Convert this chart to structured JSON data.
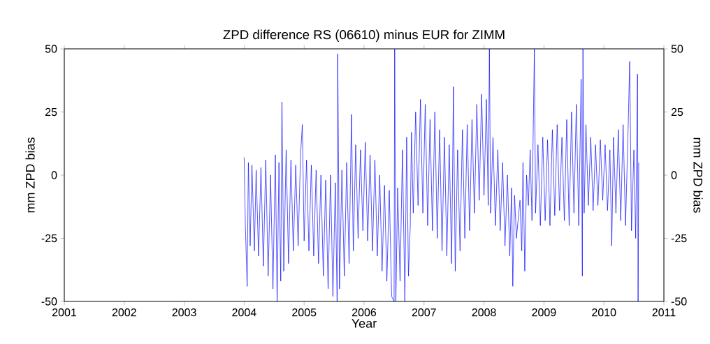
{
  "chart_data": {
    "type": "line",
    "title": "ZPD difference RS (06610) minus EUR for ZIMM",
    "xlabel": "Year",
    "ylabel": "mm ZPD bias",
    "y2label": "mm ZPD bias",
    "xlim": [
      2001,
      2011
    ],
    "xticks": [
      2001,
      2002,
      2003,
      2004,
      2005,
      2006,
      2007,
      2008,
      2009,
      2010,
      2011
    ],
    "ylim": [
      -50,
      50
    ],
    "yticks": [
      -50,
      -25,
      0,
      25,
      50
    ],
    "y2lim": [
      -50,
      50
    ],
    "y2ticks": [
      -50,
      -25,
      0,
      25,
      50
    ],
    "grid": false,
    "marker": "none",
    "line_style": "solid",
    "series": [
      {
        "color": "#0000ff",
        "x": [
          2004.0,
          2004.02,
          2004.05,
          2004.07,
          2004.1,
          2004.13,
          2004.17,
          2004.2,
          2004.24,
          2004.28,
          2004.32,
          2004.36,
          2004.4,
          2004.44,
          2004.48,
          2004.52,
          2004.55,
          2004.58,
          2004.61,
          2004.63,
          2004.66,
          2004.7,
          2004.74,
          2004.78,
          2004.82,
          2004.86,
          2004.9,
          2004.94,
          2004.97,
          2005.0,
          2005.04,
          2005.08,
          2005.12,
          2005.16,
          2005.2,
          2005.24,
          2005.28,
          2005.32,
          2005.36,
          2005.4,
          2005.44,
          2005.48,
          2005.52,
          2005.55,
          2005.56,
          2005.59,
          2005.63,
          2005.67,
          2005.71,
          2005.75,
          2005.79,
          2005.82,
          2005.86,
          2005.9,
          2005.94,
          2005.98,
          2006.02,
          2006.06,
          2006.1,
          2006.14,
          2006.18,
          2006.22,
          2006.26,
          2006.3,
          2006.34,
          2006.38,
          2006.42,
          2006.46,
          2006.5,
          2006.51,
          2006.53,
          2006.56,
          2006.6,
          2006.64,
          2006.68,
          2006.71,
          2006.74,
          2006.77,
          2006.79,
          2006.82,
          2006.86,
          2006.9,
          2006.94,
          2006.98,
          2007.02,
          2007.06,
          2007.1,
          2007.14,
          2007.18,
          2007.22,
          2007.26,
          2007.3,
          2007.34,
          2007.38,
          2007.42,
          2007.46,
          2007.49,
          2007.52,
          2007.56,
          2007.6,
          2007.64,
          2007.68,
          2007.72,
          2007.76,
          2007.8,
          2007.84,
          2007.88,
          2007.92,
          2007.96,
          2008.0,
          2008.04,
          2008.07,
          2008.09,
          2008.11,
          2008.15,
          2008.19,
          2008.23,
          2008.27,
          2008.31,
          2008.35,
          2008.39,
          2008.43,
          2008.46,
          2008.48,
          2008.51,
          2008.54,
          2008.6,
          2008.63,
          2008.65,
          2008.68,
          2008.71,
          2008.74,
          2008.77,
          2008.8,
          2008.84,
          2008.86,
          2008.9,
          2008.94,
          2008.98,
          2009.02,
          2009.06,
          2009.1,
          2009.14,
          2009.18,
          2009.22,
          2009.26,
          2009.3,
          2009.34,
          2009.38,
          2009.42,
          2009.46,
          2009.5,
          2009.54,
          2009.58,
          2009.62,
          2009.64,
          2009.65,
          2009.67,
          2009.7,
          2009.74,
          2009.78,
          2009.82,
          2009.86,
          2009.9,
          2009.94,
          2009.98,
          2010.02,
          2010.06,
          2010.1,
          2010.13,
          2010.16,
          2010.2,
          2010.24,
          2010.28,
          2010.32,
          2010.36,
          2010.4,
          2010.43,
          2010.46,
          2010.5,
          2010.53,
          2010.56,
          2010.57,
          2010.58
        ],
        "values": [
          7,
          -20,
          -44,
          5,
          -28,
          4,
          -30,
          2,
          -32,
          3,
          -36,
          6,
          -40,
          0,
          -45,
          8,
          -50,
          5,
          -42,
          29,
          -38,
          10,
          -35,
          6,
          -30,
          4,
          -28,
          8,
          20,
          -26,
          6,
          -30,
          4,
          -32,
          2,
          -35,
          0,
          -40,
          -2,
          -45,
          0,
          -48,
          -3,
          -50,
          48,
          -45,
          2,
          -40,
          5,
          -35,
          24,
          -30,
          12,
          -25,
          10,
          -22,
          13,
          -26,
          8,
          -30,
          6,
          -32,
          0,
          -38,
          -4,
          -42,
          -6,
          -48,
          -50,
          50,
          -50,
          -5,
          -42,
          10,
          -50,
          15,
          -40,
          -20,
          17,
          -15,
          25,
          -12,
          30,
          -15,
          28,
          -20,
          22,
          -22,
          25,
          -25,
          18,
          -30,
          15,
          -32,
          12,
          -35,
          35,
          -38,
          10,
          -30,
          18,
          -25,
          20,
          -22,
          22,
          -15,
          28,
          -10,
          32,
          -8,
          30,
          -12,
          50,
          -15,
          15,
          -20,
          10,
          -22,
          5,
          -28,
          0,
          -32,
          -5,
          -44,
          -8,
          -25,
          -10,
          -30,
          5,
          -38,
          0,
          -12,
          10,
          -18,
          50,
          -15,
          12,
          -20,
          15,
          -18,
          14,
          -20,
          18,
          -16,
          20,
          -14,
          15,
          -18,
          22,
          -20,
          25,
          -15,
          28,
          -20,
          38,
          -40,
          50,
          -15,
          20,
          -12,
          15,
          -14,
          12,
          -12,
          14,
          -10,
          12,
          -14,
          10,
          -28,
          15,
          -15,
          18,
          -18,
          20,
          -20,
          15,
          45,
          -22,
          10,
          -25,
          40,
          -50,
          5
        ]
      }
    ]
  }
}
